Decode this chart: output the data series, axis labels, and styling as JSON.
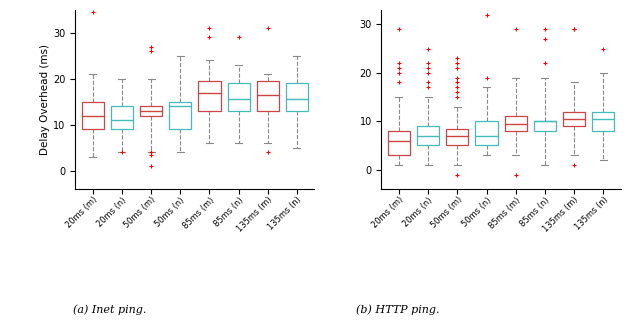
{
  "subplot_a_title": "(a) Inet ping.",
  "subplot_b_title": "(b) HTTP ping.",
  "ylabel": "Delay Overhead (ms)",
  "x_labels": [
    "20ms (m)",
    "20ms (n)",
    "50ms (m)",
    "50ms (n)",
    "85ms (m)",
    "85ms (n)",
    "135ms (m)",
    "135ms (n)"
  ],
  "inet_boxes": [
    {
      "q1": 9,
      "median": 12,
      "q3": 15,
      "whisker_lo": 3,
      "whisker_hi": 21,
      "fliers_hi": [
        34.5
      ],
      "fliers_lo": [],
      "color": "red"
    },
    {
      "q1": 9,
      "median": 11,
      "q3": 14,
      "whisker_lo": 4,
      "whisker_hi": 20,
      "fliers_hi": [],
      "fliers_lo": [
        4
      ],
      "color": "cyan"
    },
    {
      "q1": 12,
      "median": 13,
      "q3": 14,
      "whisker_lo": 4,
      "whisker_hi": 20,
      "fliers_hi": [
        26,
        27
      ],
      "fliers_lo": [
        1,
        3.5,
        4
      ],
      "color": "red"
    },
    {
      "q1": 9,
      "median": 14,
      "q3": 15,
      "whisker_lo": 4,
      "whisker_hi": 25,
      "fliers_hi": [],
      "fliers_lo": [],
      "color": "cyan"
    },
    {
      "q1": 13,
      "median": 17,
      "q3": 19.5,
      "whisker_lo": 6,
      "whisker_hi": 24,
      "fliers_hi": [
        29,
        31
      ],
      "fliers_lo": [],
      "color": "red"
    },
    {
      "q1": 13,
      "median": 15.5,
      "q3": 19,
      "whisker_lo": 6,
      "whisker_hi": 23,
      "fliers_hi": [
        29
      ],
      "fliers_lo": [],
      "color": "cyan"
    },
    {
      "q1": 13,
      "median": 16.5,
      "q3": 19.5,
      "whisker_lo": 6,
      "whisker_hi": 21,
      "fliers_hi": [
        31
      ],
      "fliers_lo": [
        4
      ],
      "color": "red"
    },
    {
      "q1": 13,
      "median": 15.5,
      "q3": 19,
      "whisker_lo": 5,
      "whisker_hi": 25,
      "fliers_hi": [],
      "fliers_lo": [],
      "color": "cyan"
    }
  ],
  "http_boxes": [
    {
      "q1": 3,
      "median": 6,
      "q3": 8,
      "whisker_lo": 1,
      "whisker_hi": 15,
      "fliers_hi": [
        18,
        20,
        21,
        22,
        29
      ],
      "fliers_lo": [],
      "color": "red"
    },
    {
      "q1": 5,
      "median": 7,
      "q3": 9,
      "whisker_lo": 1,
      "whisker_hi": 15,
      "fliers_hi": [
        17,
        18,
        20,
        21,
        22,
        25
      ],
      "fliers_lo": [],
      "color": "cyan"
    },
    {
      "q1": 5,
      "median": 7,
      "q3": 8.5,
      "whisker_lo": 1,
      "whisker_hi": 13,
      "fliers_hi": [
        15,
        16,
        17,
        18,
        19,
        21,
        22,
        23
      ],
      "fliers_lo": [
        -1
      ],
      "color": "red"
    },
    {
      "q1": 5,
      "median": 7,
      "q3": 10,
      "whisker_lo": 3,
      "whisker_hi": 17,
      "fliers_hi": [
        19,
        32
      ],
      "fliers_lo": [],
      "color": "cyan"
    },
    {
      "q1": 8,
      "median": 9.5,
      "q3": 11,
      "whisker_lo": 3,
      "whisker_hi": 19,
      "fliers_hi": [
        29
      ],
      "fliers_lo": [
        -1
      ],
      "color": "red"
    },
    {
      "q1": 8,
      "median": 10,
      "q3": 10,
      "whisker_lo": 1,
      "whisker_hi": 19,
      "fliers_hi": [
        22,
        27,
        29
      ],
      "fliers_lo": [],
      "color": "cyan"
    },
    {
      "q1": 9,
      "median": 10.5,
      "q3": 12,
      "whisker_lo": 3,
      "whisker_hi": 18,
      "fliers_hi": [
        29,
        29
      ],
      "fliers_lo": [
        1
      ],
      "color": "red"
    },
    {
      "q1": 8,
      "median": 10.5,
      "q3": 12,
      "whisker_lo": 2,
      "whisker_hi": 20,
      "fliers_hi": [
        25
      ],
      "fliers_lo": [],
      "color": "cyan"
    }
  ],
  "inet_ylim": [
    -4,
    35
  ],
  "http_ylim": [
    -4,
    33
  ],
  "inet_yticks": [
    0,
    10,
    20,
    30
  ],
  "http_yticks": [
    0,
    10,
    20,
    30
  ]
}
